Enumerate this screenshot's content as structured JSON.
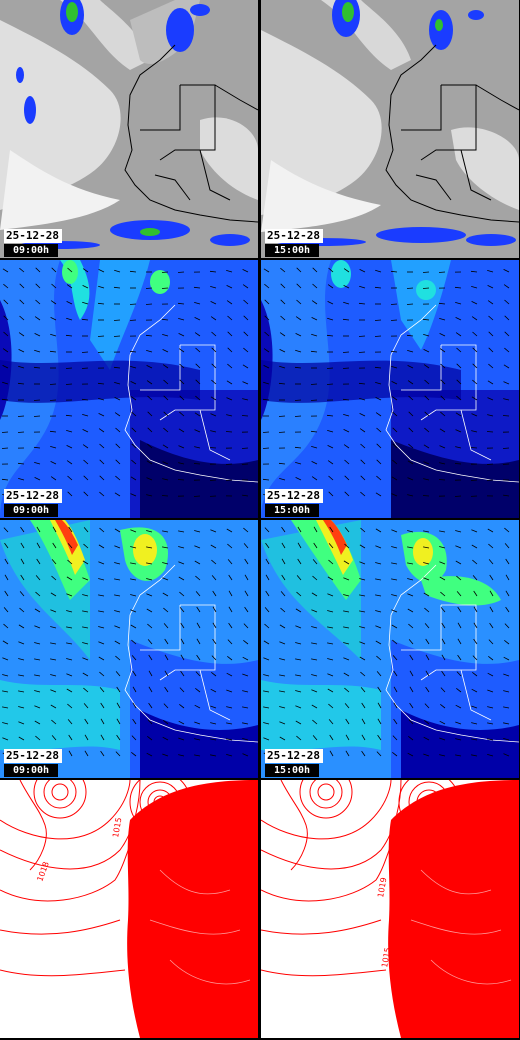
{
  "rows": [
    {
      "name": "satellite-row",
      "panels": [
        {
          "date": "25-12-28",
          "time": "09:00h"
        },
        {
          "date": "25-12-28",
          "time": "15:00h"
        }
      ]
    },
    {
      "name": "wind-low-row",
      "panels": [
        {
          "date": "25-12-28",
          "time": "09:00h"
        },
        {
          "date": "25-12-28",
          "time": "15:00h"
        }
      ]
    },
    {
      "name": "wind-high-row",
      "panels": [
        {
          "date": "25-12-28",
          "time": "09:00h"
        },
        {
          "date": "25-12-28",
          "time": "15:00h"
        }
      ]
    },
    {
      "name": "pressure-row",
      "panels": [
        {
          "date": "",
          "time": ""
        },
        {
          "date": "",
          "time": ""
        }
      ]
    }
  ],
  "isobar_labels": [
    "1018",
    "1015",
    "1019",
    "1015"
  ],
  "colors": {
    "sat_bg": "#9e9e9e",
    "sat_cloud": "#e8e8e8",
    "precip_blue": "#1a3cff",
    "wind_dark": "#0000a8",
    "wind_mid": "#1e5cff",
    "wind_light": "#22a0ff",
    "wind_cyan": "#20e0e0",
    "wind_green": "#40ff80",
    "wind_yellow": "#f0f020",
    "wind_red": "#ff4010",
    "isobar": "#ff0000",
    "border": "#000000"
  }
}
